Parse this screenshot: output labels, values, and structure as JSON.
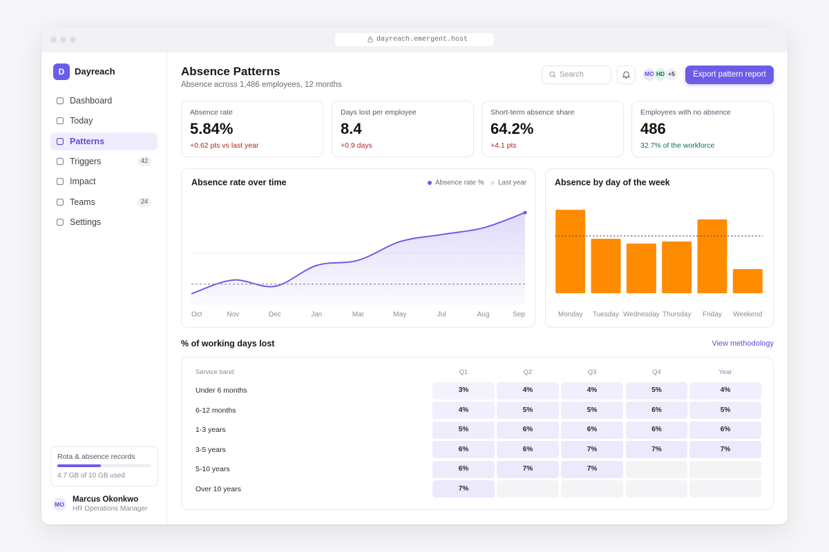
{
  "browser": {
    "url": "dayreach.emergent.host"
  },
  "sidebar": {
    "brand": {
      "initial": "D",
      "name": "Dayreach"
    },
    "nav": [
      {
        "label": "Dashboard"
      },
      {
        "label": "Today"
      },
      {
        "label": "Patterns",
        "active": true
      },
      {
        "label": "Triggers",
        "badge": 42
      },
      {
        "label": "Impact"
      },
      {
        "label": "Teams",
        "badge": 24
      },
      {
        "label": "Settings"
      }
    ],
    "storage": {
      "title": "Rota & absence records",
      "used_gb": 4.7,
      "total_gb": 10,
      "label": "4.7 GB of 10 GB used"
    },
    "user": {
      "initials": "MO",
      "name": "Marcus Okonkwo",
      "role": "HR Operations Manager"
    }
  },
  "header": {
    "title": "Absence Patterns",
    "subtitle": "Absence across 1,486 employees, 12 months",
    "search_placeholder": "Search",
    "avatars": [
      "MO",
      "HD"
    ],
    "more_avatars": "+5",
    "action": "Export pattern report"
  },
  "kpis": [
    {
      "label": "Absence rate",
      "value": "5.84%",
      "delta": "+0.62 pts vs last year",
      "tone": "bad"
    },
    {
      "label": "Days lost per employee",
      "value": "8.4",
      "delta": "+0.9 days",
      "tone": "bad"
    },
    {
      "label": "Short-term absence share",
      "value": "64.2%",
      "delta": "+4.1 pts",
      "tone": "bad"
    },
    {
      "label": "Employees with no absence",
      "value": "486",
      "delta": "32.7% of the workforce",
      "tone": "good"
    }
  ],
  "chart_data": [
    {
      "type": "line",
      "title": "Absence rate over time",
      "categories": [
        "Oct",
        "Nov",
        "Dec",
        "Jan",
        "Mar",
        "May",
        "Jul",
        "Aug",
        "Sep"
      ],
      "series": [
        {
          "name": "Absence rate %",
          "color": "#6c5ce7",
          "values": [
            4.3,
            4.67,
            4.5,
            5.06,
            5.2,
            5.7,
            5.89,
            6.07,
            6.48
          ]
        },
        {
          "name": "Last year",
          "color": "#8e8ea6",
          "dashed": true,
          "values": [
            4.56,
            4.56,
            4.56,
            4.56,
            4.56,
            4.56,
            4.56,
            4.56,
            4.56
          ]
        }
      ],
      "ylim": [
        4,
        7
      ]
    },
    {
      "type": "bar",
      "title": "Absence by day of the week",
      "categories": [
        "Monday",
        "Tuesday",
        "Wednesday",
        "Thursday",
        "Friday",
        "Weekend"
      ],
      "values": [
        8.64,
        5.64,
        5.14,
        5.36,
        7.64,
        2.5
      ],
      "color": "#ff8c00",
      "reference_line": 5.93,
      "ylim": [
        0,
        10
      ]
    }
  ],
  "table": {
    "title": "% of working days lost",
    "link": "View methodology",
    "columns": [
      "Service band",
      "Q1",
      "Q2",
      "Q3",
      "Q4",
      "Year"
    ],
    "rows": [
      {
        "band": "Under 6 months",
        "cells": [
          {
            "value": 3,
            "label": "3%"
          },
          {
            "value": 4,
            "label": "4%"
          },
          {
            "value": 4,
            "label": "4%"
          },
          {
            "value": 5,
            "label": "5%"
          },
          {
            "value": 4,
            "label": "4%"
          }
        ]
      },
      {
        "band": "6-12 months",
        "cells": [
          {
            "value": 4,
            "label": "4%"
          },
          {
            "value": 5,
            "label": "5%"
          },
          {
            "value": 5,
            "label": "5%"
          },
          {
            "value": 6,
            "label": "6%"
          },
          {
            "value": 5,
            "label": "5%"
          }
        ]
      },
      {
        "band": "1-3 years",
        "cells": [
          {
            "value": 5,
            "label": "5%"
          },
          {
            "value": 6,
            "label": "6%"
          },
          {
            "value": 6,
            "label": "6%"
          },
          {
            "value": 6,
            "label": "6%"
          },
          {
            "value": 6,
            "label": "6%"
          }
        ]
      },
      {
        "band": "3-5 years",
        "cells": [
          {
            "value": 6,
            "label": "6%"
          },
          {
            "value": 6,
            "label": "6%"
          },
          {
            "value": 7,
            "label": "7%"
          },
          {
            "value": 7,
            "label": "7%"
          },
          {
            "value": 7,
            "label": "7%"
          }
        ]
      },
      {
        "band": "5-10 years",
        "cells": [
          {
            "value": 6,
            "label": "6%"
          },
          {
            "value": 7,
            "label": "7%"
          },
          {
            "value": 7,
            "label": "7%"
          },
          null,
          null
        ]
      },
      {
        "band": "Over 10 years",
        "cells": [
          {
            "value": 7,
            "label": "7%"
          },
          null,
          null,
          null,
          null
        ]
      }
    ]
  }
}
